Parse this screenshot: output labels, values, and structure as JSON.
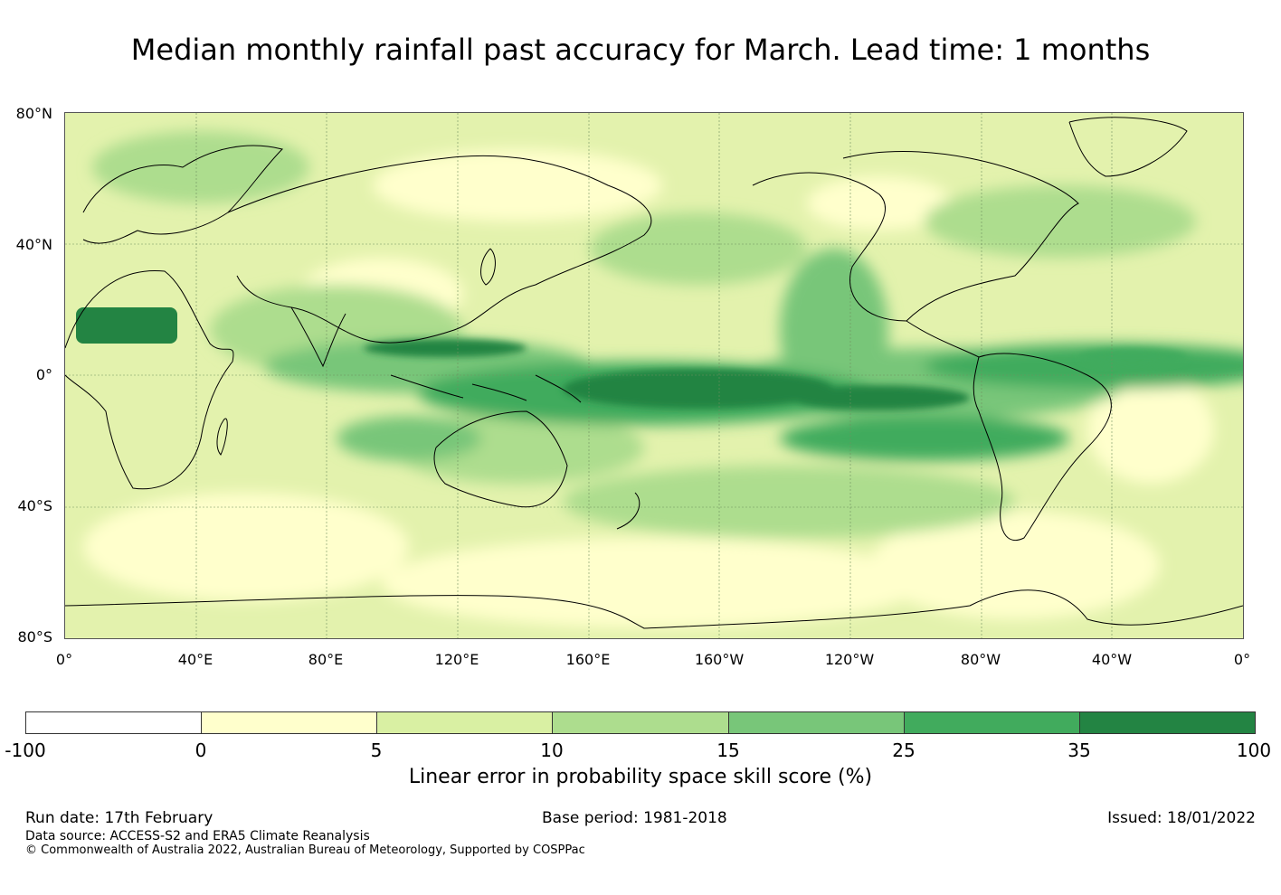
{
  "title": "Median monthly rainfall past accuracy for March. Lead time: 1 months",
  "map": {
    "lat_labels": [
      "80°N",
      "40°N",
      "0°",
      "40°S",
      "80°S"
    ],
    "lon_labels": [
      "0°",
      "40°E",
      "80°E",
      "120°E",
      "160°E",
      "160°W",
      "120°W",
      "80°W",
      "40°W",
      "0°"
    ]
  },
  "colorbar": {
    "label": "Linear error in probability space skill score (%)",
    "ticks": [
      "-100",
      "0",
      "5",
      "10",
      "15",
      "25",
      "35",
      "100"
    ],
    "colors": [
      "#ffffff",
      "#ffffcc",
      "#d9f0a3",
      "#addd8e",
      "#78c679",
      "#41ab5d",
      "#238443"
    ]
  },
  "footer": {
    "run_date": "Run date: 17th February",
    "base_period": "Base period: 1981-2018",
    "issued": "Issued: 18/01/2022",
    "data_source": "Data source: ACCESS-S2 and ERA5 Climate Reanalysis",
    "copyright": "© Commonwealth of Australia 2022, Australian Bureau of Meteorology, Supported by COSPPac"
  }
}
